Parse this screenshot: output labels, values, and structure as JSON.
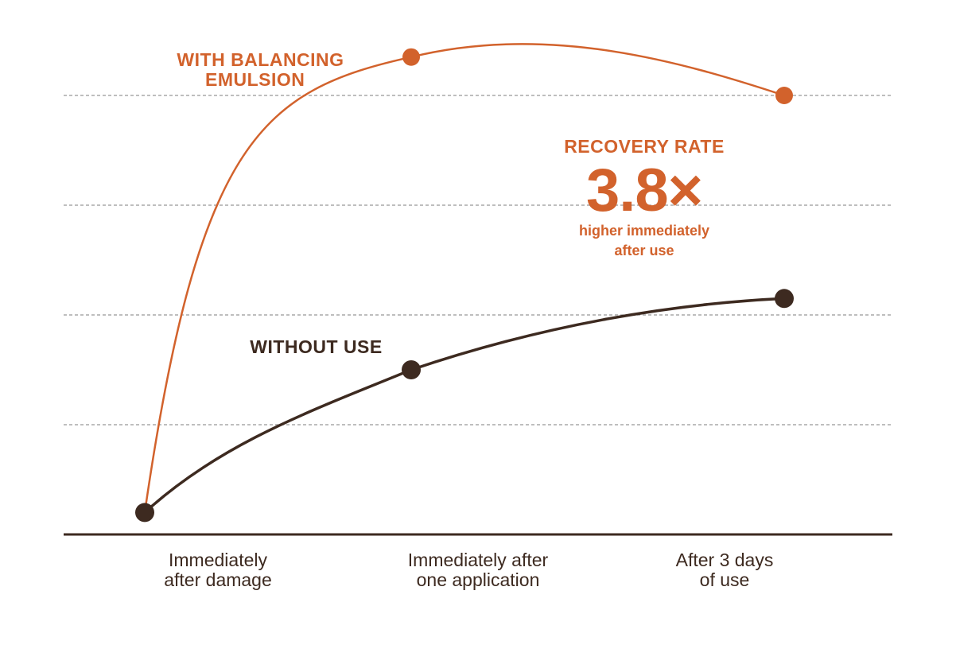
{
  "colors": {
    "accent": "#d2622c",
    "dark": "#3d2a20",
    "grid": "#a8a8a8",
    "background": "#ffffff"
  },
  "chart_data": {
    "type": "line",
    "title": "",
    "xlabel": "",
    "ylabel": "",
    "categories": [
      "Immediately after damage",
      "Immediately after one application",
      "After 3 days of use"
    ],
    "category_lines": [
      [
        "Immediately",
        "after damage"
      ],
      [
        "Immediately after",
        "one application"
      ],
      [
        "After 3 days",
        "of use"
      ]
    ],
    "ylim": [
      0,
      5
    ],
    "grid": true,
    "series": [
      {
        "name": "WITH BALANCING EMULSION",
        "name_lines": [
          "WITH BALANCING",
          "EMULSION"
        ],
        "values": [
          0.2,
          4.35,
          4.0
        ],
        "peak_between": 4.5,
        "color": "#d2622c"
      },
      {
        "name": "WITHOUT USE",
        "name_lines": [
          "WITHOUT USE"
        ],
        "values": [
          0.2,
          1.5,
          2.15
        ],
        "color": "#3d2a20"
      }
    ],
    "annotation": {
      "heading": "RECOVERY RATE",
      "value": "3.8×",
      "caption_lines": [
        "higher immediately",
        "after use"
      ]
    }
  }
}
